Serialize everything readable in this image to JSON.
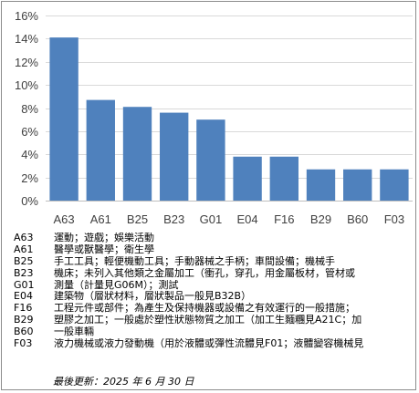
{
  "chart_data": {
    "type": "bar",
    "categories": [
      "A63",
      "A61",
      "B25",
      "B23",
      "G01",
      "E04",
      "F16",
      "B29",
      "B60",
      "F03"
    ],
    "values": [
      14.1,
      8.7,
      8.1,
      7.6,
      7.0,
      3.8,
      3.8,
      2.7,
      2.7,
      2.7
    ],
    "ylim": [
      0,
      16
    ],
    "yticks": [
      0,
      2,
      4,
      6,
      8,
      10,
      12,
      14,
      16
    ],
    "ytick_labels": [
      "0%",
      "2%",
      "4%",
      "6%",
      "8%",
      "10%",
      "12%",
      "14%",
      "16%"
    ],
    "grid": true,
    "bar_color": "#4F81BD",
    "grid_color": "#D9D9D9"
  },
  "legend": [
    {
      "code": "A63",
      "desc": "運動；遊戲；娛樂活動"
    },
    {
      "code": "A61",
      "desc": "醫學或獸醫學；衛生學"
    },
    {
      "code": "B25",
      "desc": "手工工具；輕便機動工具；手動器械之手柄；車間設備；機械手"
    },
    {
      "code": "B23",
      "desc": "機床；未列入其他類之金屬加工（衝孔，穿孔，用金屬板材，管材或"
    },
    {
      "code": "G01",
      "desc": "測量（計量見G06M）；測試"
    },
    {
      "code": "E04",
      "desc": "建築物（層狀材料，層狀製品一般見B32B）"
    },
    {
      "code": "F16",
      "desc": "工程元件或部件；為產生及保持機器或設備之有效運行的一般措施；"
    },
    {
      "code": "B29",
      "desc": "塑膠之加工；一般處於塑性狀態物質之加工（加工生麵糰見A21C；加"
    },
    {
      "code": "B60",
      "desc": "一般車輛"
    },
    {
      "code": "F03",
      "desc": "液力機械或液力發動機（用於液體或彈性流體見F01；液體變容機械見"
    }
  ],
  "footnote": "最後更新：2025 年 6 月 30 日"
}
